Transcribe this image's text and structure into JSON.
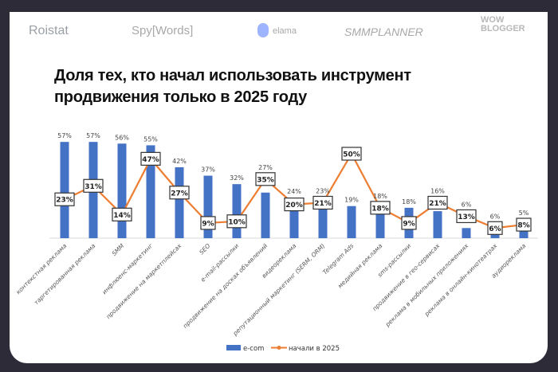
{
  "logos": [
    "Roistat",
    "Spy[Words]",
    "elama",
    "SMMPLANNER",
    "WOW BLOGGER"
  ],
  "title_lines": [
    "Доля тех, кто начал использовать инструмент",
    "продвижения только в 2025 году"
  ],
  "chart_data": {
    "type": "bar+line",
    "title": "Доля тех, кто начал использовать инструмент продвижения только в 2025 году",
    "categories": [
      "контекстная реклама",
      "таргетированная реклама",
      "SMM",
      "инфлюенс-маркетинг",
      "продвижение на маркетплейсах",
      "SEO",
      "e-mail-рассылки",
      "продвижение на досках объявлений",
      "видеореклама",
      "репутационный маркетинг (SERM, ORM)",
      "Telegram Ads",
      "медийная реклама",
      "sms-рассылки",
      "продвижение в гео-сервисах",
      "реклама в мобильных приложениях",
      "реклама в онлайн-кинотеатрах",
      "аудиореклама"
    ],
    "series": [
      {
        "name": "e-com",
        "type": "bar",
        "color": "#4472c4",
        "values": [
          57,
          57,
          56,
          55,
          42,
          37,
          32,
          27,
          24,
          23,
          19,
          18,
          18,
          16,
          6,
          6,
          5
        ]
      },
      {
        "name": "начали в 2025",
        "type": "line",
        "color": "#ed7d31",
        "values": [
          23,
          31,
          14,
          47,
          27,
          9,
          10,
          35,
          20,
          21,
          50,
          18,
          9,
          21,
          13,
          6,
          8
        ]
      }
    ],
    "ylim": [
      0,
      60
    ],
    "grid": false,
    "legend": "bottom"
  }
}
